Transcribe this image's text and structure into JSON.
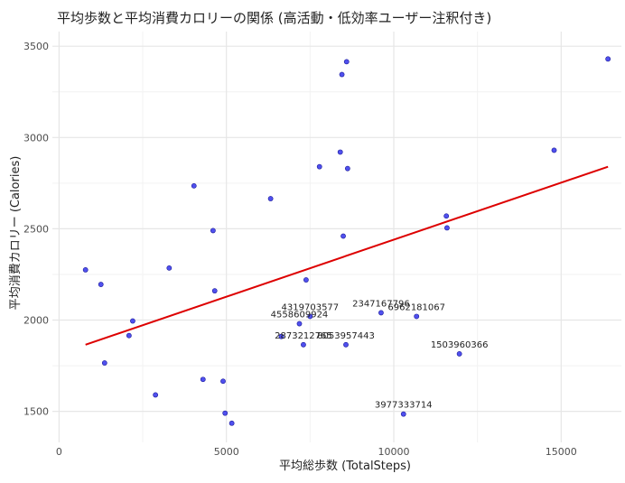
{
  "chart_data": {
    "type": "scatter",
    "title": "平均歩数と平均消費カロリーの関係 (高活動・低効率ユーザー注釈付き)",
    "xlabel": "平均総歩数 (TotalSteps)",
    "ylabel": "平均消費カロリー (Calories)",
    "xlim": [
      -200,
      16800
    ],
    "ylim": [
      1330,
      3580
    ],
    "xticks": [
      0,
      5000,
      10000,
      15000
    ],
    "yticks": [
      1500,
      2000,
      2500,
      3000,
      3500
    ],
    "grid": true,
    "colors": {
      "point_fill": "#5050ee",
      "point_stroke": "#1a1a99",
      "trend_line": "#dd0000",
      "grid_major": "#e6e6e6",
      "grid_minor": "#f2f2f2"
    },
    "points": [
      {
        "x": 790,
        "y": 2275
      },
      {
        "x": 1250,
        "y": 2195
      },
      {
        "x": 1360,
        "y": 1765
      },
      {
        "x": 2090,
        "y": 1915
      },
      {
        "x": 2200,
        "y": 1995
      },
      {
        "x": 2880,
        "y": 1590
      },
      {
        "x": 3290,
        "y": 2285
      },
      {
        "x": 4030,
        "y": 2735
      },
      {
        "x": 4300,
        "y": 1675
      },
      {
        "x": 4600,
        "y": 2490
      },
      {
        "x": 4650,
        "y": 2160
      },
      {
        "x": 4900,
        "y": 1665
      },
      {
        "x": 4960,
        "y": 1490
      },
      {
        "x": 5160,
        "y": 1435
      },
      {
        "x": 6320,
        "y": 2665
      },
      {
        "x": 6640,
        "y": 1910
      },
      {
        "x": 7180,
        "y": 1980
      },
      {
        "x": 7300,
        "y": 1865
      },
      {
        "x": 7380,
        "y": 2220
      },
      {
        "x": 7500,
        "y": 2020
      },
      {
        "x": 7780,
        "y": 2840
      },
      {
        "x": 8400,
        "y": 2920
      },
      {
        "x": 8450,
        "y": 3345
      },
      {
        "x": 8490,
        "y": 2460
      },
      {
        "x": 8570,
        "y": 1865
      },
      {
        "x": 8590,
        "y": 3415
      },
      {
        "x": 8620,
        "y": 2830
      },
      {
        "x": 9620,
        "y": 2040
      },
      {
        "x": 10290,
        "y": 1485
      },
      {
        "x": 10680,
        "y": 2020
      },
      {
        "x": 11570,
        "y": 2570
      },
      {
        "x": 11590,
        "y": 2505
      },
      {
        "x": 11960,
        "y": 1815
      },
      {
        "x": 14790,
        "y": 2930
      },
      {
        "x": 16400,
        "y": 3430
      }
    ],
    "annotations": [
      {
        "text": "4319703577",
        "x": 7500,
        "y": 2020
      },
      {
        "text": "4558609924",
        "x": 7180,
        "y": 1980
      },
      {
        "text": "2347167796",
        "x": 9620,
        "y": 2040
      },
      {
        "text": "6962181067",
        "x": 10680,
        "y": 2020
      },
      {
        "text": "2873212765",
        "x": 7300,
        "y": 1865
      },
      {
        "text": "8053957443",
        "x": 8570,
        "y": 1865
      },
      {
        "text": "1503960366",
        "x": 11960,
        "y": 1815
      },
      {
        "text": "3977333714",
        "x": 10290,
        "y": 1485
      }
    ],
    "trend_line": {
      "x": [
        790,
        16400
      ],
      "y": [
        1865,
        2840
      ]
    }
  }
}
